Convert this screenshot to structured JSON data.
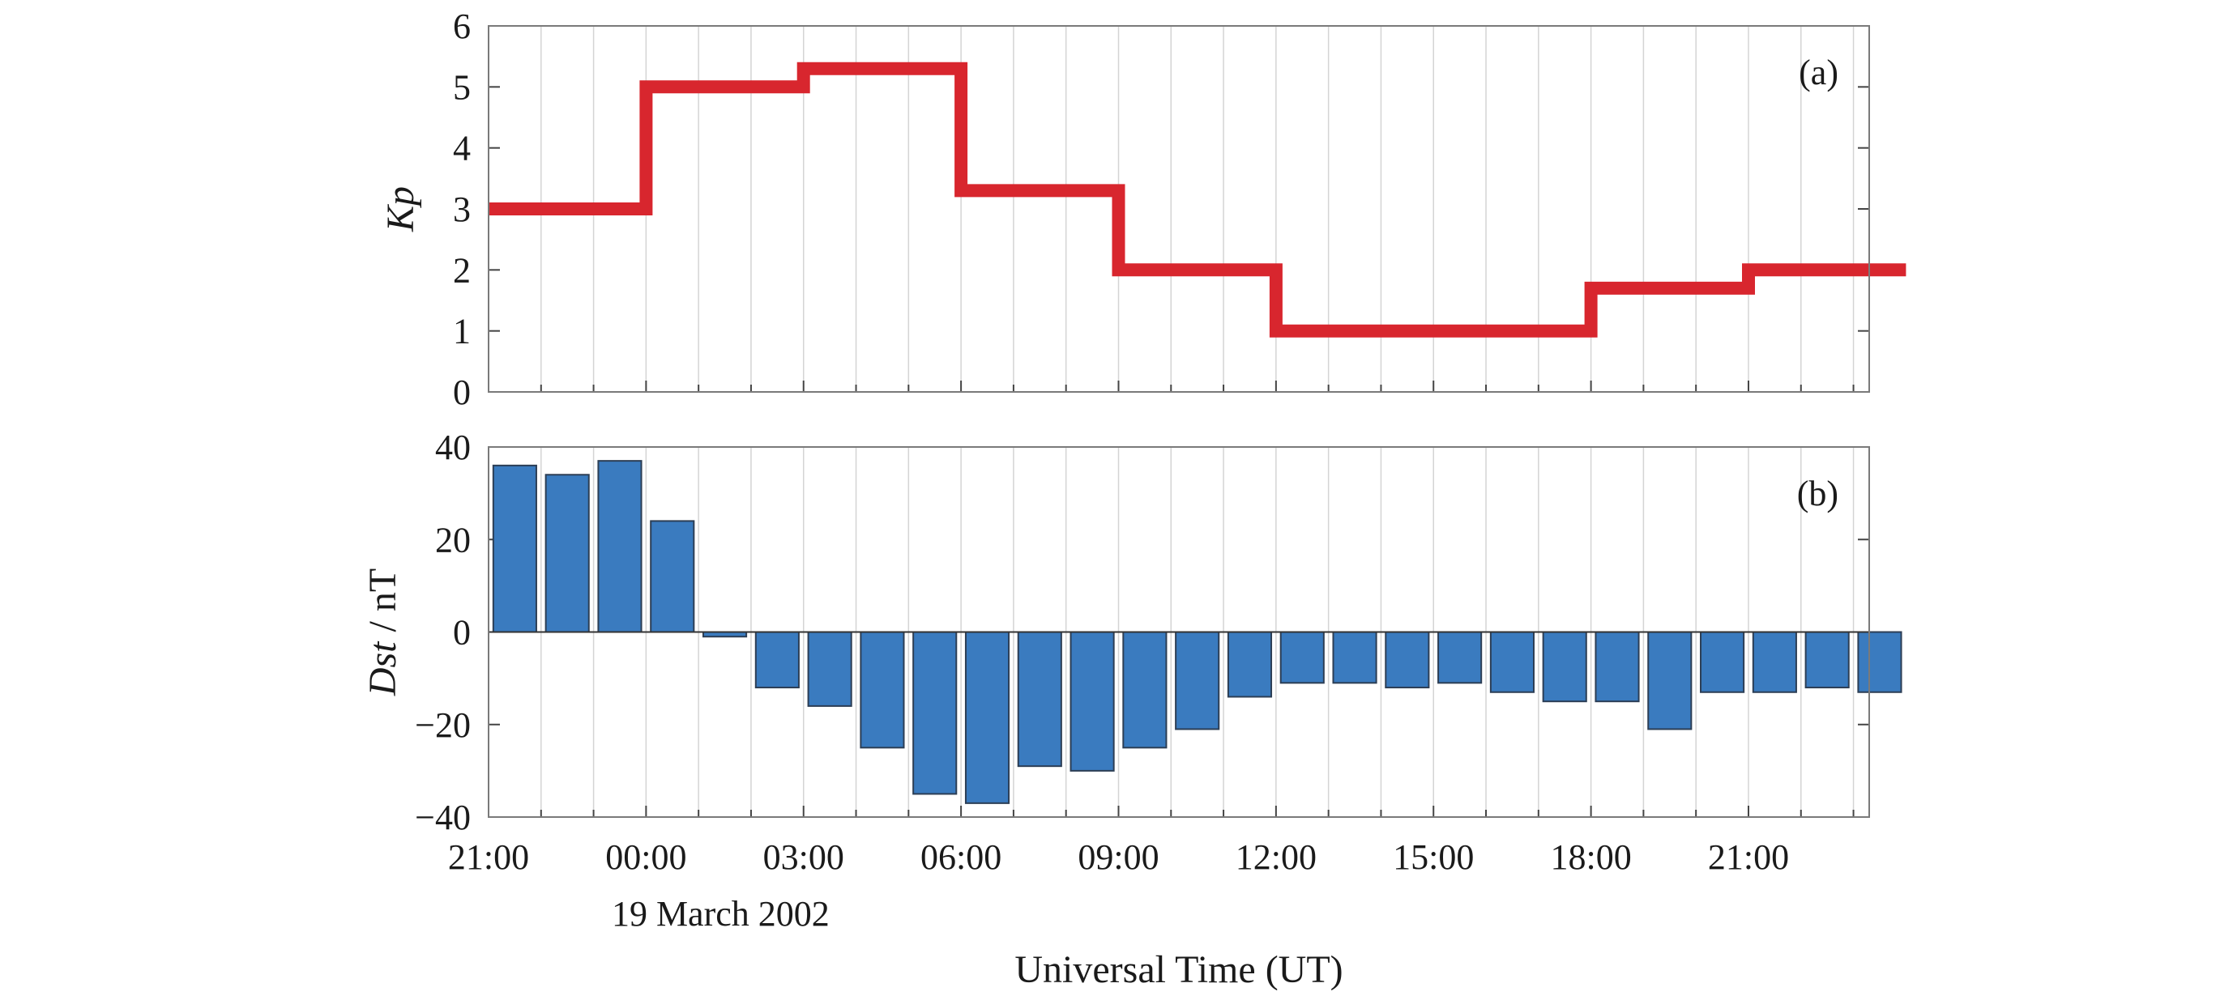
{
  "chart_data": [
    {
      "type": "line",
      "panel_tag": "(a)",
      "ylabel": "Kp",
      "ylim": [
        0,
        6
      ],
      "yticks": [
        0,
        1,
        2,
        3,
        4,
        5,
        6
      ],
      "step": true,
      "color": "#d8262e",
      "x_hours": [
        -3,
        0,
        0,
        3,
        3,
        6,
        6,
        9,
        9,
        12,
        12,
        15,
        15,
        18,
        18,
        21,
        21,
        24
      ],
      "values": [
        3,
        3,
        5,
        5,
        5.3,
        5.3,
        3.3,
        3.3,
        2,
        2,
        1,
        1,
        1,
        1,
        1.7,
        1.7,
        2,
        2
      ],
      "grid": "vertical"
    },
    {
      "type": "bar",
      "panel_tag": "(b)",
      "ylabel": "Dst / nT",
      "ylim": [
        -40,
        40
      ],
      "yticks": [
        -40,
        -20,
        0,
        20,
        40
      ],
      "color": "#3a7bbf",
      "x_hours": [
        -3,
        -2,
        -1,
        0,
        1,
        2,
        3,
        4,
        5,
        6,
        7,
        8,
        9,
        10,
        11,
        12,
        13,
        14,
        15,
        16,
        17,
        18,
        19,
        20,
        21,
        22,
        23
      ],
      "values": [
        36,
        34,
        37,
        24,
        -1,
        -12,
        -16,
        -25,
        -35,
        -37,
        -29,
        -30,
        -25,
        -21,
        -14,
        -11,
        -11,
        -12,
        -11,
        -13,
        -15,
        -15,
        -21,
        -13,
        -13,
        -12,
        -13
      ],
      "grid": "vertical"
    }
  ],
  "x_axis": {
    "range_hours": [
      -3,
      23.3
    ],
    "tick_hours": [
      -3,
      0,
      3,
      6,
      9,
      12,
      15,
      18,
      21
    ],
    "tick_labels": [
      "21:00",
      "00:00",
      "03:00",
      "06:00",
      "09:00",
      "12:00",
      "15:00",
      "18:00",
      "21:00"
    ],
    "date_label": "19 March 2002",
    "xlabel": "Universal Time (UT)"
  }
}
